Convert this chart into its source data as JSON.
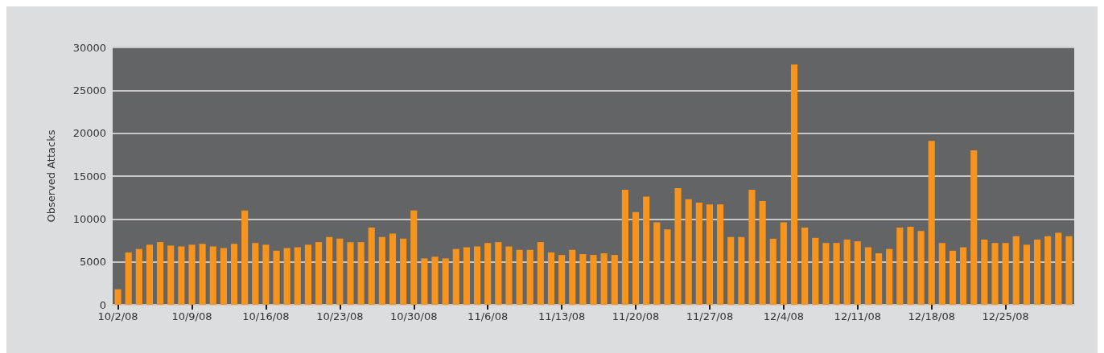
{
  "chart_data": {
    "type": "bar",
    "ylabel": "Observed Attacks",
    "categories": [
      "10/2/08",
      null,
      null,
      null,
      null,
      null,
      null,
      "10/9/08",
      null,
      null,
      null,
      null,
      null,
      null,
      "10/16/08",
      null,
      null,
      null,
      null,
      null,
      null,
      "10/23/08",
      null,
      null,
      null,
      null,
      null,
      null,
      "10/30/08",
      null,
      null,
      null,
      null,
      null,
      null,
      "11/6/08",
      null,
      null,
      null,
      null,
      null,
      null,
      "11/13/08",
      null,
      null,
      null,
      null,
      null,
      null,
      "11/20/08",
      null,
      null,
      null,
      null,
      null,
      null,
      "11/27/08",
      null,
      null,
      null,
      null,
      null,
      null,
      "12/4/08",
      null,
      null,
      null,
      null,
      null,
      null,
      "12/11/08",
      null,
      null,
      null,
      null,
      null,
      null,
      "12/18/08",
      null,
      null,
      null,
      null,
      null,
      null,
      "12/25/08",
      null,
      null,
      null,
      null,
      null,
      null
    ],
    "values": [
      1800,
      6100,
      6500,
      7000,
      7300,
      6900,
      6800,
      7000,
      7100,
      6800,
      6600,
      7100,
      11000,
      7200,
      7000,
      6300,
      6600,
      6700,
      7000,
      7300,
      7900,
      7700,
      7300,
      7300,
      9000,
      7900,
      8300,
      7700,
      11000,
      5400,
      5600,
      5400,
      6500,
      6700,
      6800,
      7200,
      7300,
      6800,
      6400,
      6400,
      7300,
      6100,
      5800,
      6400,
      5900,
      5800,
      6000,
      5800,
      13400,
      10800,
      12600,
      9600,
      8800,
      13600,
      12300,
      11900,
      11700,
      11700,
      7900,
      7900,
      13400,
      12100,
      7700,
      9600,
      28000,
      9000,
      7800,
      7200,
      7200,
      7600,
      7400,
      6700,
      6000,
      6500,
      9000,
      9100,
      8600,
      19100,
      7200,
      6300,
      6700,
      18000,
      7600,
      7200,
      7200,
      8000,
      7000,
      7600,
      8000,
      8400,
      8000
    ],
    "color": "#f7941d",
    "ylim": [
      0,
      30000
    ],
    "yticks": [
      0,
      5000,
      10000,
      15000,
      20000,
      25000,
      30000
    ],
    "grid": "y"
  }
}
